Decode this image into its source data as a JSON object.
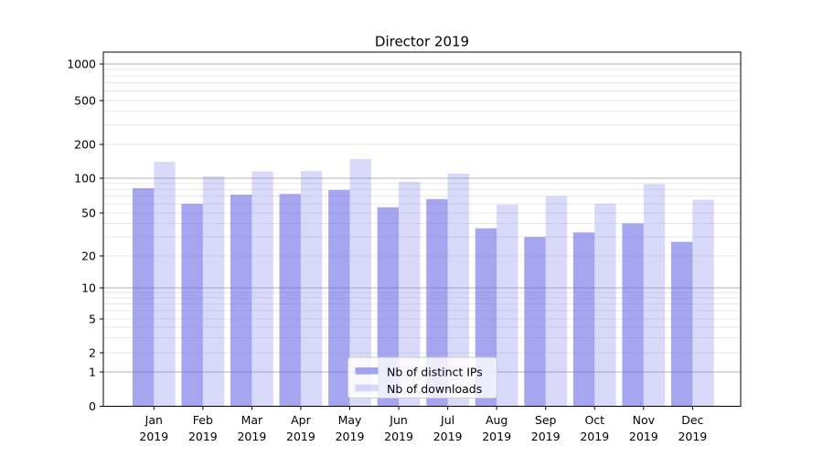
{
  "chart_data": {
    "type": "bar",
    "title": "Director 2019",
    "categories": [
      "Jan 2019",
      "Feb 2019",
      "Mar 2019",
      "Apr 2019",
      "May 2019",
      "Jun 2019",
      "Jul 2019",
      "Aug 2019",
      "Sep 2019",
      "Oct 2019",
      "Nov 2019",
      "Dec 2019"
    ],
    "series": [
      {
        "name": "Nb of distinct IPs",
        "values": [
          82,
          60,
          72,
          73,
          79,
          56,
          66,
          36,
          30,
          33,
          40,
          27
        ]
      },
      {
        "name": "Nb of downloads",
        "values": [
          140,
          104,
          115,
          116,
          148,
          93,
          110,
          59,
          70,
          60,
          89,
          65
        ]
      }
    ],
    "yscale": "symlog",
    "ytick_values": [
      0,
      1,
      2,
      5,
      10,
      20,
      50,
      100,
      200,
      500,
      1000
    ],
    "ytick_labels": [
      "0",
      "1",
      "2",
      "5",
      "10",
      "20",
      "50",
      "100",
      "200",
      "500",
      "1000"
    ],
    "ylim": [
      0,
      1300
    ],
    "xlabel": "",
    "ylabel": "",
    "grid": true,
    "legend_position": "lower center"
  },
  "colors": {
    "bar_distinct_ips": "rgba(112,112,230,0.62)",
    "bar_downloads": "rgba(128,128,240,0.30)",
    "grid_major": "#b0b0b0",
    "grid_minor": "#e7e7e7",
    "spine": "#000000",
    "text": "#000000",
    "legend_bg": "rgba(255,255,255,0.8)",
    "legend_border": "#cccccc"
  }
}
